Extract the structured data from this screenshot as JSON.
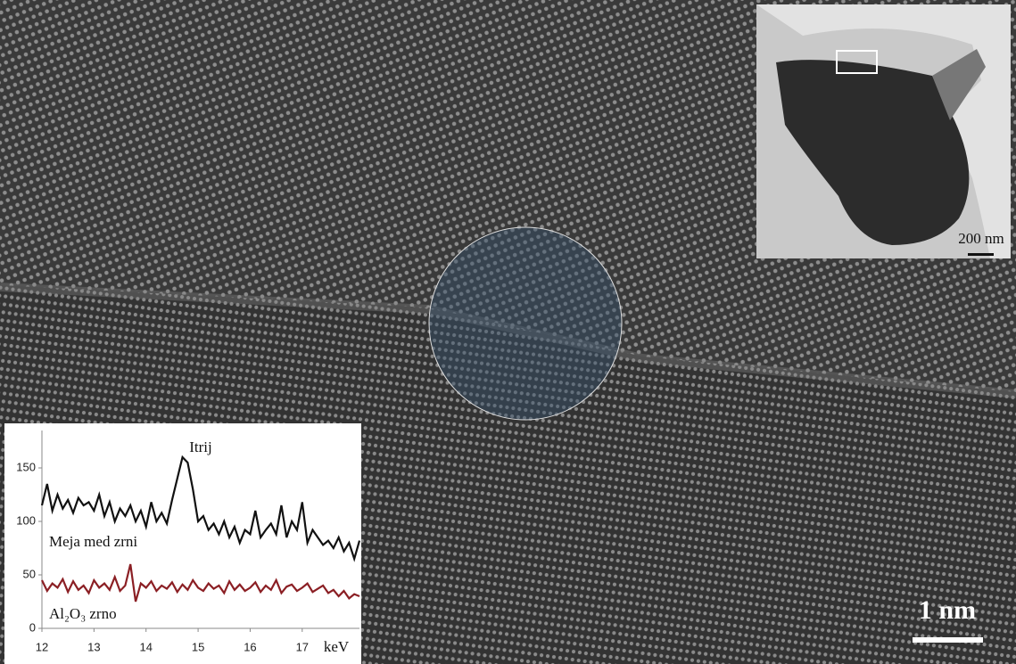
{
  "image": {
    "scale_bar": "1 nm",
    "inset_scale_bar": "200 nm"
  },
  "chart_data": {
    "type": "line",
    "x": [
      12.0,
      12.1,
      12.2,
      12.3,
      12.4,
      12.5,
      12.6,
      12.7,
      12.8,
      12.9,
      13.0,
      13.1,
      13.2,
      13.3,
      13.4,
      13.5,
      13.6,
      13.7,
      13.8,
      13.9,
      14.0,
      14.1,
      14.2,
      14.3,
      14.4,
      14.5,
      14.6,
      14.7,
      14.8,
      14.9,
      15.0,
      15.1,
      15.2,
      15.3,
      15.4,
      15.5,
      15.6,
      15.7,
      15.8,
      15.9,
      16.0,
      16.1,
      16.2,
      16.3,
      16.4,
      16.5,
      16.6,
      16.7,
      16.8,
      16.9,
      17.0,
      17.1,
      17.2,
      17.3,
      17.4,
      17.5,
      17.6,
      17.7,
      17.8,
      17.9,
      18.0,
      18.1
    ],
    "series": [
      {
        "name": "Meja med zrni",
        "color": "#111111",
        "values": [
          115,
          135,
          110,
          125,
          112,
          120,
          108,
          122,
          115,
          118,
          110,
          125,
          105,
          118,
          100,
          112,
          105,
          115,
          100,
          110,
          95,
          118,
          100,
          108,
          98,
          120,
          140,
          160,
          155,
          130,
          100,
          105,
          92,
          98,
          88,
          100,
          85,
          95,
          80,
          92,
          88,
          110,
          85,
          92,
          98,
          88,
          115,
          85,
          100,
          92,
          118,
          80,
          92,
          85,
          78,
          82,
          75,
          85,
          72,
          80,
          65,
          82
        ]
      },
      {
        "name": "Al₂O₃ zrno",
        "color": "#8b1f24",
        "values": [
          45,
          35,
          42,
          38,
          46,
          34,
          44,
          36,
          40,
          33,
          45,
          38,
          42,
          36,
          48,
          35,
          40,
          60,
          25,
          42,
          38,
          44,
          35,
          40,
          37,
          43,
          34,
          41,
          36,
          45,
          38,
          35,
          42,
          37,
          40,
          33,
          44,
          36,
          41,
          35,
          38,
          43,
          34,
          40,
          36,
          45,
          33,
          39,
          41,
          35,
          38,
          42,
          34,
          37,
          40,
          33,
          36,
          30,
          35,
          28,
          32,
          30
        ]
      }
    ],
    "annotations": [
      "Itrij"
    ],
    "xlabel": "keV",
    "xlim": [
      12,
      18.1
    ],
    "xticks": [
      12,
      13,
      14,
      15,
      16,
      17
    ],
    "ylim": [
      0,
      185
    ],
    "yticks": [
      0,
      50,
      100,
      150
    ]
  }
}
